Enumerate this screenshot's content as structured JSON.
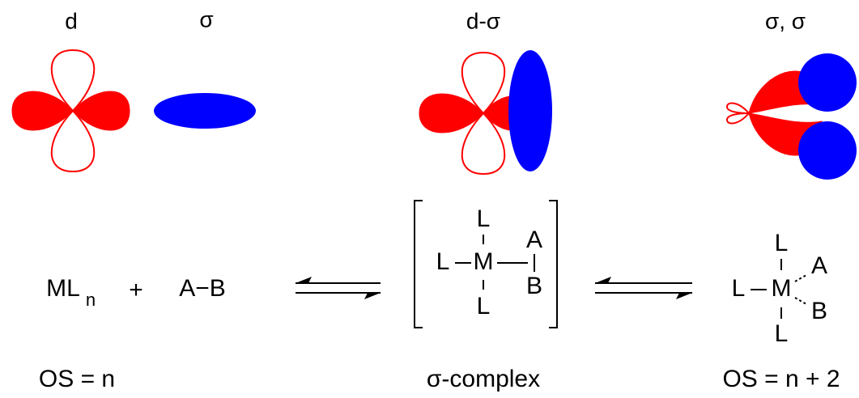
{
  "orbital_labels": [
    "d",
    "σ",
    "d-σ",
    "σ, σ"
  ],
  "reactants": {
    "metal": "ML",
    "subscript": "n",
    "plus": "+",
    "substrate": "A−B"
  },
  "complex": {
    "top": "L",
    "left": "L",
    "metal": "M",
    "bottom": "L",
    "a": "A",
    "b": "B"
  },
  "product": {
    "top": "L",
    "left": "L",
    "metal": "M",
    "bottom": "L",
    "a": "A",
    "b": "B"
  },
  "captions": [
    "OS = n",
    "σ-complex",
    "OS = n + 2"
  ]
}
